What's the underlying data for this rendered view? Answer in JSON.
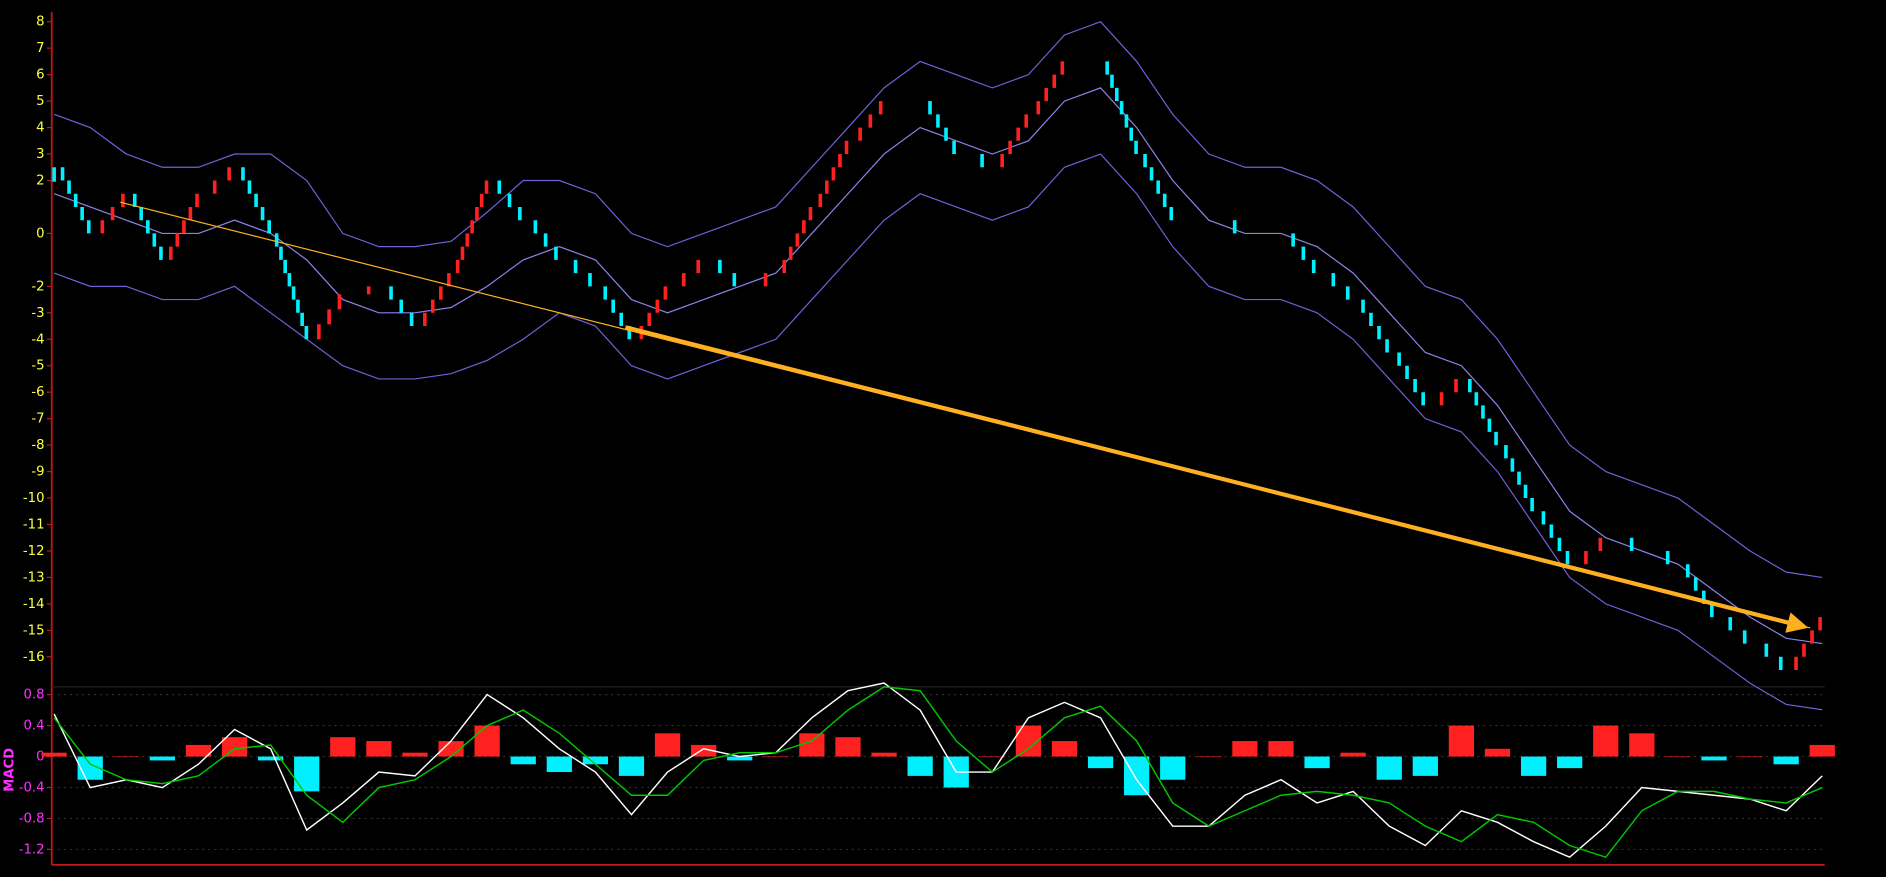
{
  "chart_data": [
    {
      "type": "renko",
      "ylim": [
        -16.5,
        8.3
      ],
      "yticks": [
        8,
        7,
        6,
        5,
        4,
        3,
        2,
        0,
        -2,
        -3,
        -4,
        -5,
        -6,
        -7,
        -8,
        -9,
        -10,
        -11,
        -12,
        -13,
        -14,
        -15,
        -16
      ],
      "up_color": "#ff2020",
      "down_color": "#00f0ff",
      "values": [
        2.5,
        0,
        1.5,
        -1,
        1.5,
        2.5,
        0,
        -4,
        -2.3,
        -2,
        -3.5,
        -1.5,
        2,
        0.5,
        -1,
        -2,
        -4,
        -2,
        -1,
        -2,
        -1.5,
        1,
        3.5,
        5,
        5,
        3,
        2.5,
        4.5,
        6.5,
        6.5,
        3,
        0.5,
        0.5,
        0,
        0,
        -1.5,
        -2.5,
        -4.5,
        -6.5,
        -5.5,
        -8,
        -10.5,
        -12.5,
        -11.5,
        -12,
        -12.5,
        -14.5,
        -15.5,
        -16.5,
        -14.5
      ],
      "bands": [
        {
          "color": "#6b63d6",
          "values": [
            4.5,
            4,
            3,
            2.5,
            2.5,
            3,
            3,
            2,
            0,
            -0.5,
            -0.5,
            -0.3,
            0.8,
            2,
            2,
            1.5,
            0,
            -0.5,
            0,
            0.5,
            1,
            2.5,
            4,
            5.5,
            6.5,
            6,
            5.5,
            6,
            7.5,
            8,
            6.5,
            4.5,
            3,
            2.5,
            2.5,
            2,
            1,
            -0.5,
            -2,
            -2.5,
            -4,
            -6,
            -8,
            -9,
            -9.5,
            -10,
            -11,
            -12,
            -12.8,
            -13
          ]
        },
        {
          "color": "#8a84e8",
          "values": [
            1.5,
            1,
            0.5,
            0,
            0,
            0.5,
            0,
            -1,
            -2.5,
            -3,
            -3,
            -2.8,
            -2,
            -1,
            -0.5,
            -1,
            -2.5,
            -3,
            -2.5,
            -2,
            -1.5,
            0,
            1.5,
            3,
            4,
            3.5,
            3,
            3.5,
            5,
            5.5,
            4,
            2,
            0.5,
            0,
            0,
            -0.5,
            -1.5,
            -3,
            -4.5,
            -5,
            -6.5,
            -8.5,
            -10.5,
            -11.5,
            -12,
            -12.5,
            -13.5,
            -14.5,
            -15.3,
            -15.5
          ]
        },
        {
          "color": "#6b63d6",
          "values": [
            -1.5,
            -2,
            -2,
            -2.5,
            -2.5,
            -2,
            -3,
            -4,
            -5,
            -5.5,
            -5.5,
            -5.3,
            -4.8,
            -4,
            -3,
            -3.5,
            -5,
            -5.5,
            -5,
            -4.5,
            -4,
            -2.5,
            -1,
            0.5,
            1.5,
            1,
            0.5,
            1,
            2.5,
            3,
            1.5,
            -0.5,
            -2,
            -2.5,
            -2.5,
            -3,
            -4,
            -5.5,
            -7,
            -7.5,
            -9,
            -11,
            -13,
            -14,
            -14.5,
            -15,
            -16,
            -17,
            -17.8,
            -18
          ]
        }
      ]
    },
    {
      "type": "macd",
      "y_label": "MACD",
      "ylim": [
        -1.4,
        0.9
      ],
      "yticks": [
        0.8,
        0.4,
        0,
        -0.4,
        -0.8,
        -1.2
      ],
      "grid": true,
      "series": [
        {
          "color": "#ffffff",
          "values": [
            0.55,
            -0.4,
            -0.3,
            -0.4,
            -0.1,
            0.35,
            0.1,
            -0.95,
            -0.6,
            -0.2,
            -0.25,
            0.2,
            0.8,
            0.5,
            0.1,
            -0.2,
            -0.75,
            -0.2,
            0.1,
            0,
            0.05,
            0.5,
            0.85,
            0.95,
            0.6,
            -0.2,
            -0.2,
            0.5,
            0.7,
            0.5,
            -0.3,
            -0.9,
            -0.9,
            -0.5,
            -0.3,
            -0.6,
            -0.45,
            -0.9,
            -1.15,
            -0.7,
            -0.85,
            -1.1,
            -1.3,
            -0.9,
            -0.4,
            -0.45,
            -0.5,
            -0.55,
            -0.7,
            -0.25
          ]
        },
        {
          "color": "#00c800",
          "values": [
            0.5,
            -0.1,
            -0.3,
            -0.35,
            -0.25,
            0.1,
            0.15,
            -0.5,
            -0.85,
            -0.4,
            -0.3,
            0,
            0.4,
            0.6,
            0.3,
            -0.1,
            -0.5,
            -0.5,
            -0.05,
            0.05,
            0.05,
            0.2,
            0.6,
            0.9,
            0.85,
            0.2,
            -0.2,
            0.1,
            0.5,
            0.65,
            0.2,
            -0.6,
            -0.9,
            -0.7,
            -0.5,
            -0.45,
            -0.5,
            -0.6,
            -0.9,
            -1.1,
            -0.75,
            -0.85,
            -1.15,
            -1.3,
            -0.7,
            -0.45,
            -0.45,
            -0.55,
            -0.6,
            -0.4
          ]
        }
      ],
      "histogram": {
        "up_color": "#ff2020",
        "down_color": "#00f0ff",
        "values": [
          0.05,
          -0.3,
          0,
          -0.05,
          0.15,
          0.25,
          -0.05,
          -0.45,
          0.25,
          0.2,
          0.05,
          0.2,
          0.4,
          -0.1,
          -0.2,
          -0.1,
          -0.25,
          0.3,
          0.15,
          -0.05,
          0,
          0.3,
          0.25,
          0.05,
          -0.25,
          -0.4,
          0,
          0.4,
          0.2,
          -0.15,
          -0.5,
          -0.3,
          0,
          0.2,
          0.2,
          -0.15,
          0.05,
          -0.3,
          -0.25,
          0.4,
          0.1,
          -0.25,
          -0.15,
          0.4,
          0.3,
          0,
          -0.05,
          0,
          -0.1,
          0.15
        ]
      }
    }
  ]
}
